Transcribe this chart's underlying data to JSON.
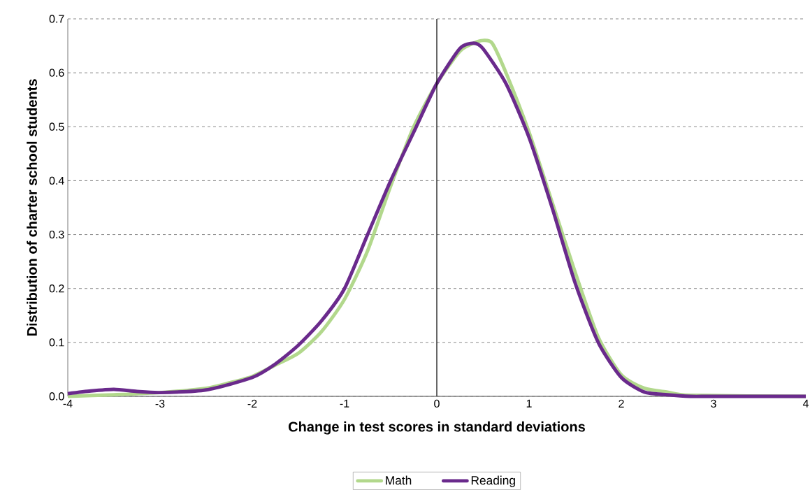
{
  "chart_data": {
    "type": "line",
    "xlabel": "Change in test scores in standard deviations",
    "ylabel": "Distribution of charter school students",
    "xlim": [
      -4,
      4
    ],
    "xticks": [
      -4,
      -3,
      -2,
      -1,
      0,
      1,
      2,
      3,
      4
    ],
    "ylim": [
      0,
      0.7
    ],
    "yticks": [
      {
        "value": 0,
        "label": "0.0"
      },
      0.1,
      0.2,
      0.3,
      0.4,
      0.5,
      0.6,
      0.7
    ],
    "grid": "y",
    "legend": "bottom",
    "marker": "none",
    "line_style": "solid",
    "ref_lines": [
      {
        "axis": "x",
        "value": 0,
        "color": "#000000"
      }
    ],
    "series": [
      {
        "name": "Math",
        "color": "#b2d88c",
        "x": [
          -4,
          -3.5,
          -3,
          -2.5,
          -2.25,
          -2,
          -1.75,
          -1.5,
          -1.25,
          -1,
          -0.75,
          -0.5,
          -0.25,
          0,
          0.25,
          0.4,
          0.5,
          0.6,
          0.75,
          1,
          1.25,
          1.5,
          1.75,
          2,
          2.25,
          2.5,
          2.75,
          4
        ],
        "values": [
          0.0,
          0.003,
          0.007,
          0.015,
          0.025,
          0.037,
          0.058,
          0.08,
          0.12,
          0.18,
          0.27,
          0.39,
          0.5,
          0.58,
          0.64,
          0.655,
          0.66,
          0.655,
          0.6,
          0.49,
          0.36,
          0.23,
          0.11,
          0.04,
          0.015,
          0.008,
          0.002,
          0.0
        ]
      },
      {
        "name": "Reading",
        "color": "#6a2a8c",
        "x": [
          -4,
          -3.75,
          -3.5,
          -3.25,
          -3,
          -2.5,
          -2,
          -1.75,
          -1.5,
          -1.25,
          -1,
          -0.75,
          -0.5,
          -0.25,
          0,
          0.25,
          0.4,
          0.5,
          0.75,
          1,
          1.25,
          1.5,
          1.75,
          2,
          2.25,
          2.5,
          2.75,
          3,
          4
        ],
        "values": [
          0.005,
          0.01,
          0.013,
          0.009,
          0.007,
          0.012,
          0.035,
          0.06,
          0.095,
          0.14,
          0.2,
          0.3,
          0.4,
          0.49,
          0.58,
          0.645,
          0.655,
          0.645,
          0.58,
          0.48,
          0.35,
          0.21,
          0.1,
          0.035,
          0.008,
          0.003,
          0.0,
          0.0,
          0.0
        ]
      }
    ]
  }
}
